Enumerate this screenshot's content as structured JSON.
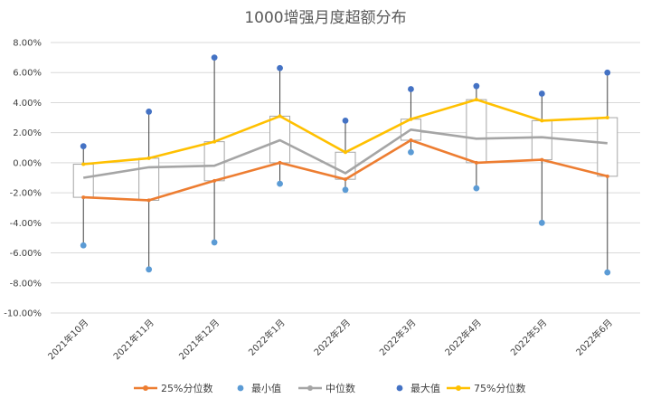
{
  "chart_data": {
    "type": "line",
    "title": "1000增强月度超额分布",
    "categories": [
      "2021年10月",
      "2021年11月",
      "2021年12月",
      "2022年1月",
      "2022年2月",
      "2022年3月",
      "2022年4月",
      "2022年5月",
      "2022年6月"
    ],
    "y_ticks": [
      "8.00%",
      "6.00%",
      "4.00%",
      "2.00%",
      "0.00%",
      "-2.00%",
      "-4.00%",
      "-6.00%",
      "-8.00%",
      "-10.00%"
    ],
    "ylim": [
      -10,
      8
    ],
    "grid": true,
    "legend_position": "bottom",
    "series": [
      {
        "name": "25%分位数",
        "type": "line",
        "color": "#ED7D31",
        "values": [
          -2.3,
          -2.5,
          -1.2,
          0.0,
          -1.1,
          1.5,
          0.0,
          0.2,
          -0.9
        ]
      },
      {
        "name": "最小值",
        "type": "scatter",
        "color": "#5B9BD5",
        "values": [
          -5.5,
          -7.1,
          -5.3,
          -1.4,
          -1.8,
          0.7,
          -1.7,
          -4.0,
          -7.3
        ]
      },
      {
        "name": "中位数",
        "type": "line",
        "color": "#A5A5A5",
        "values": [
          -1.0,
          -0.3,
          -0.2,
          1.5,
          -0.7,
          2.2,
          1.6,
          1.7,
          1.3
        ]
      },
      {
        "name": "最大值",
        "type": "scatter",
        "color": "#4472C4",
        "values": [
          1.1,
          3.4,
          7.0,
          6.3,
          2.8,
          4.9,
          5.1,
          4.6,
          6.0
        ]
      },
      {
        "name": "75%分位数",
        "type": "line",
        "color": "#FFC000",
        "values": [
          -0.1,
          0.3,
          1.4,
          3.1,
          0.7,
          2.9,
          4.2,
          2.8,
          3.0
        ]
      }
    ]
  }
}
